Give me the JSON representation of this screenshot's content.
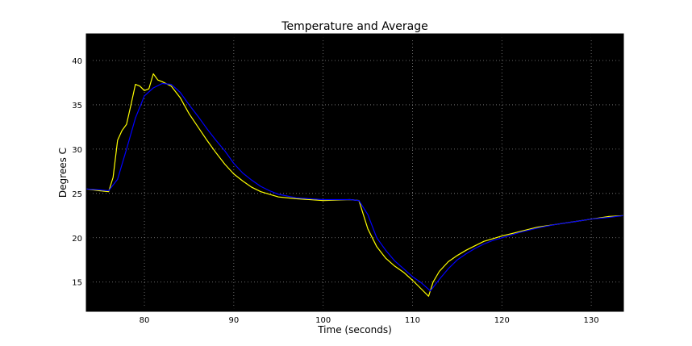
{
  "chart_data": {
    "type": "line",
    "title": "Temperature and Average",
    "xlabel": "Time (seconds)",
    "ylabel": "Degrees C",
    "xlim": [
      73.5,
      133.6
    ],
    "ylim": [
      11.7,
      43
    ],
    "xticks": [
      80,
      90,
      100,
      110,
      120,
      130
    ],
    "yticks": [
      15,
      20,
      25,
      30,
      35,
      40
    ],
    "grid": true,
    "background": "#000000",
    "series": [
      {
        "color": "#ffff00",
        "x": [
          73.5,
          75,
          76,
          76.5,
          77,
          77.5,
          78,
          78.5,
          79,
          79.5,
          80,
          80.5,
          81,
          81.5,
          82,
          83,
          84,
          85,
          86,
          87,
          88,
          89,
          90,
          91,
          92,
          93,
          94,
          95,
          97,
          100,
          103,
          104,
          105,
          106,
          107,
          108,
          109,
          110,
          111,
          111.8,
          112.3,
          113,
          114,
          115,
          116,
          117,
          118,
          119,
          120,
          122,
          124,
          126,
          128,
          130,
          132,
          133.6
        ],
        "y": [
          25.5,
          25.3,
          25.2,
          26.8,
          31,
          32.1,
          32.8,
          35,
          37.3,
          37.1,
          36.6,
          36.8,
          38.5,
          37.8,
          37.6,
          37.1,
          35.8,
          34,
          32.5,
          31,
          29.6,
          28.3,
          27.2,
          26.4,
          25.7,
          25.2,
          24.9,
          24.6,
          24.4,
          24.2,
          24.3,
          24.2,
          21,
          19,
          17.7,
          16.8,
          16.1,
          15.2,
          14.2,
          13.4,
          15,
          16.2,
          17.3,
          18,
          18.6,
          19.1,
          19.6,
          19.9,
          20.2,
          20.7,
          21.2,
          21.5,
          21.8,
          22.1,
          22.4,
          22.5
        ]
      },
      {
        "color": "#0000ff",
        "x": [
          73.5,
          75,
          76,
          77,
          78,
          79,
          80,
          81,
          82,
          83,
          84,
          85,
          86,
          87,
          88,
          89,
          90,
          91,
          92,
          93,
          94,
          95,
          97,
          100,
          103,
          104,
          105,
          106,
          107,
          108,
          109,
          110,
          111,
          112,
          113,
          114,
          115,
          116,
          117,
          118,
          119,
          120,
          122,
          124,
          126,
          128,
          130,
          132,
          133.6
        ],
        "y": [
          25.5,
          25.4,
          25.3,
          26.6,
          30,
          33.5,
          36,
          36.9,
          37.4,
          37.3,
          36.4,
          35,
          33.7,
          32.3,
          31,
          29.8,
          28.4,
          27.3,
          26.5,
          25.8,
          25.3,
          24.9,
          24.5,
          24.3,
          24.3,
          24.2,
          22.6,
          20,
          18.6,
          17.4,
          16.5,
          15.6,
          14.9,
          14,
          15.3,
          16.5,
          17.5,
          18.2,
          18.8,
          19.3,
          19.7,
          20,
          20.6,
          21.1,
          21.5,
          21.8,
          22.1,
          22.3,
          22.5
        ]
      }
    ]
  }
}
